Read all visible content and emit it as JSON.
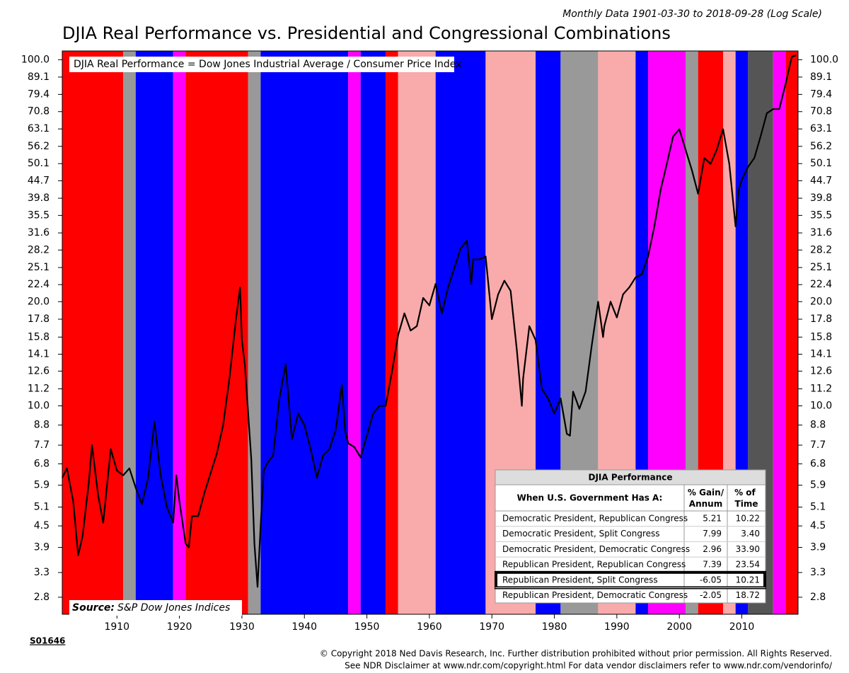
{
  "chart_data": {
    "type": "line",
    "title": "DJIA Real Performance vs. Presidential and Congressional Combinations",
    "subtitle": "Monthly Data 1901-03-30 to 2018-09-28 (Log Scale)",
    "annotation": "DJIA Real Performance = Dow Jones Industrial Average / Consumer Price Index",
    "source_label": "Source:",
    "source": "S&P Dow Jones Indices",
    "code": "S01646",
    "copyright": [
      "© Copyright 2018 Ned Davis Research, Inc. Further distribution prohibited without prior permission. All Rights Reserved.",
      "See NDR Disclaimer at www.ndr.com/copyright.html   For data vendor disclaimers refer to www.ndr.com/vendorinfo/"
    ],
    "log_scale": true,
    "xlim": [
      1901.25,
      2019
    ],
    "xticks": [
      1910,
      1920,
      1930,
      1940,
      1950,
      1960,
      1970,
      1980,
      1990,
      2000,
      2010
    ],
    "ylim": [
      2.5,
      106
    ],
    "yticks": [
      {
        "value": 100,
        "label": "100.0"
      },
      89.1,
      79.4,
      70.8,
      63.1,
      56.2,
      50.1,
      44.7,
      39.8,
      35.5,
      31.6,
      28.2,
      25.1,
      22.4,
      {
        "value": 20,
        "label": "20.0"
      },
      17.8,
      15.8,
      14.1,
      12.6,
      11.2,
      {
        "value": 10,
        "label": "10.0"
      },
      8.8,
      7.7,
      6.8,
      5.9,
      5.1,
      4.5,
      3.9,
      3.3,
      2.8
    ],
    "regimes": [
      {
        "start": 1901.25,
        "end": 1911,
        "color": "#ff0000"
      },
      {
        "start": 1911,
        "end": 1913,
        "color": "#999999"
      },
      {
        "start": 1913,
        "end": 1919,
        "color": "#0000ff"
      },
      {
        "start": 1919,
        "end": 1921,
        "color": "#ff00ff"
      },
      {
        "start": 1921,
        "end": 1931,
        "color": "#ff0000"
      },
      {
        "start": 1931,
        "end": 1933,
        "color": "#999999"
      },
      {
        "start": 1933,
        "end": 1947,
        "color": "#0000ff"
      },
      {
        "start": 1947,
        "end": 1949,
        "color": "#ff00ff"
      },
      {
        "start": 1949,
        "end": 1953,
        "color": "#0000ff"
      },
      {
        "start": 1953,
        "end": 1955,
        "color": "#ff0000"
      },
      {
        "start": 1955,
        "end": 1961,
        "color": "#f9aaaa"
      },
      {
        "start": 1961,
        "end": 1969,
        "color": "#0000ff"
      },
      {
        "start": 1969,
        "end": 1977,
        "color": "#f9aaaa"
      },
      {
        "start": 1977,
        "end": 1981,
        "color": "#0000ff"
      },
      {
        "start": 1981,
        "end": 1987,
        "color": "#999999"
      },
      {
        "start": 1987,
        "end": 1993,
        "color": "#f9aaaa"
      },
      {
        "start": 1993,
        "end": 1995,
        "color": "#0000ff"
      },
      {
        "start": 1995,
        "end": 2001,
        "color": "#ff00ff"
      },
      {
        "start": 2001,
        "end": 2003,
        "color": "#999999"
      },
      {
        "start": 2003,
        "end": 2007,
        "color": "#ff0000"
      },
      {
        "start": 2007,
        "end": 2009,
        "color": "#f9aaaa"
      },
      {
        "start": 2009,
        "end": 2011,
        "color": "#0000ff"
      },
      {
        "start": 2011,
        "end": 2015,
        "color": "#555555"
      },
      {
        "start": 2015,
        "end": 2017,
        "color": "#ff00ff"
      },
      {
        "start": 2017,
        "end": 2019,
        "color": "#ff0000"
      }
    ],
    "line_color": "#000000",
    "x": [
      1901.25,
      1902,
      1903,
      1903.8,
      1904.5,
      1905.5,
      1906,
      1907,
      1907.8,
      1909,
      1910,
      1911,
      1912,
      1913,
      1914,
      1915,
      1916,
      1917,
      1918,
      1919,
      1919.5,
      1920,
      1921,
      1921.5,
      1922,
      1923,
      1924,
      1925,
      1926,
      1927,
      1928,
      1929,
      1929.7,
      1930,
      1930.5,
      1931,
      1931.5,
      1932,
      1932.5,
      1933,
      1933.5,
      1934,
      1935,
      1936,
      1937,
      1938,
      1939,
      1940,
      1941,
      1942,
      1943,
      1944,
      1945,
      1946,
      1946.5,
      1947,
      1948,
      1949,
      1950,
      1951,
      1952,
      1953,
      1954,
      1955,
      1956,
      1957,
      1958,
      1959,
      1960,
      1961,
      1962,
      1963,
      1964,
      1965,
      1966,
      1966.7,
      1967,
      1968,
      1969,
      1970,
      1971,
      1972,
      1973,
      1974,
      1974.8,
      1975,
      1976,
      1977,
      1978,
      1979,
      1980,
      1981,
      1982,
      1982.5,
      1983,
      1984,
      1985,
      1986,
      1987,
      1987.8,
      1988,
      1989,
      1990,
      1991,
      1992,
      1993,
      1994,
      1995,
      1996,
      1997,
      1998,
      1999,
      2000,
      2001,
      2002,
      2003,
      2004,
      2005,
      2006,
      2007,
      2008,
      2009,
      2009.5,
      2010,
      2011,
      2012,
      2013,
      2014,
      2015,
      2016,
      2017,
      2018,
      2018.7
    ],
    "values": [
      6.2,
      6.6,
      5.3,
      3.7,
      4.2,
      6.0,
      7.7,
      5.5,
      4.6,
      7.5,
      6.5,
      6.3,
      6.6,
      5.8,
      5.2,
      6.2,
      9.0,
      6.3,
      5.1,
      4.6,
      6.3,
      5.3,
      4.0,
      3.9,
      4.8,
      4.8,
      5.6,
      6.4,
      7.3,
      8.8,
      12.0,
      17.5,
      22.0,
      15.5,
      13.0,
      9.5,
      7.0,
      4.0,
      3.0,
      4.5,
      6.5,
      6.8,
      7.2,
      10.5,
      13.2,
      8.0,
      9.5,
      8.8,
      7.5,
      6.2,
      7.2,
      7.5,
      8.5,
      11.5,
      8.5,
      7.8,
      7.6,
      7.1,
      8.2,
      9.5,
      10.0,
      10.0,
      12.5,
      16.0,
      18.5,
      16.5,
      17.0,
      20.5,
      19.5,
      22.5,
      18.5,
      22.0,
      25.0,
      28.5,
      30.0,
      22.5,
      26.5,
      26.5,
      27.0,
      17.8,
      21.0,
      23.0,
      21.5,
      14.5,
      10.0,
      12.0,
      17.0,
      15.5,
      11.2,
      10.5,
      9.5,
      10.5,
      8.3,
      8.2,
      11.0,
      9.8,
      11.0,
      15.0,
      20.0,
      15.8,
      17.0,
      20.0,
      18.0,
      21.0,
      22.0,
      23.5,
      24.0,
      27.0,
      33.0,
      42.0,
      50.0,
      60.0,
      63.0,
      55.0,
      48.0,
      41.0,
      52.0,
      50.0,
      55.0,
      63.0,
      50.0,
      33.0,
      42.0,
      45.0,
      49.0,
      52.0,
      60.0,
      70.0,
      72.0,
      72.0,
      85.0,
      102.0,
      103.0
    ],
    "table": {
      "title": "DJIA Performance",
      "headers": [
        "When U.S. Government Has A:",
        "% Gain/ Annum",
        "% of Time"
      ],
      "highlight_row": 4,
      "rows": [
        {
          "label": "Democratic President, Republican Congress",
          "gain": "5.21",
          "time": "10.22",
          "color": "#e000e0"
        },
        {
          "label": "Democratic President, Split Congress",
          "gain": "7.99",
          "time": "3.40",
          "color": "#555555"
        },
        {
          "label": "Democratic President, Democratic Congress",
          "gain": "2.96",
          "time": "33.90",
          "color": "#0000c0"
        },
        {
          "label": "Republican President, Republican Congress",
          "gain": "7.39",
          "time": "23.54",
          "color": "#e00000"
        },
        {
          "label": "Republican President, Split Congress",
          "gain": "-6.05",
          "time": "10.21",
          "color": "#aaaaaa"
        },
        {
          "label": "Republican President, Democratic Congress",
          "gain": "-2.05",
          "time": "18.72",
          "color": "#f4a0a0"
        }
      ]
    }
  }
}
